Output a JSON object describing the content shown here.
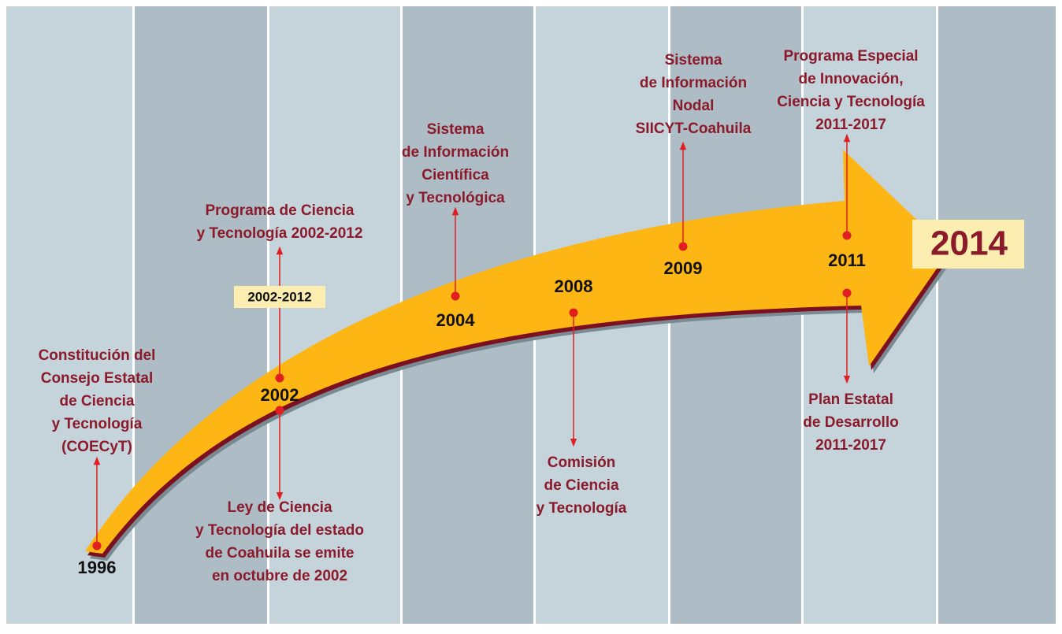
{
  "timeline": {
    "events": [
      {
        "year": "1996",
        "above": [
          "Constitución del",
          "Consejo Estatal",
          "de Ciencia",
          "y Tecnología",
          "(COECyT)"
        ]
      },
      {
        "year": "2002",
        "badge": "2002-2012",
        "above": [
          "Programa de Ciencia",
          "y Tecnología 2002-2012"
        ],
        "below": [
          "Ley de Ciencia",
          "y Tecnología del estado",
          "de Coahuila se emite",
          "en octubre de 2002"
        ]
      },
      {
        "year": "2004",
        "above": [
          "Sistema",
          "de Información",
          "Científica",
          "y Tecnológica"
        ]
      },
      {
        "year": "2008",
        "below": [
          "Comisión",
          "de Ciencia",
          "y Tecnología"
        ]
      },
      {
        "year": "2009",
        "above": [
          "Sistema",
          "de Información",
          "Nodal",
          "SIICYT-Coahuila"
        ]
      },
      {
        "year": "2011",
        "above": [
          "Programa Especial",
          "de Innovación,",
          "Ciencia y Tecnología",
          "2011-2017"
        ],
        "below": [
          "Plan Estatal",
          "de Desarrollo",
          "2011-2017"
        ]
      }
    ],
    "end": "2014"
  }
}
